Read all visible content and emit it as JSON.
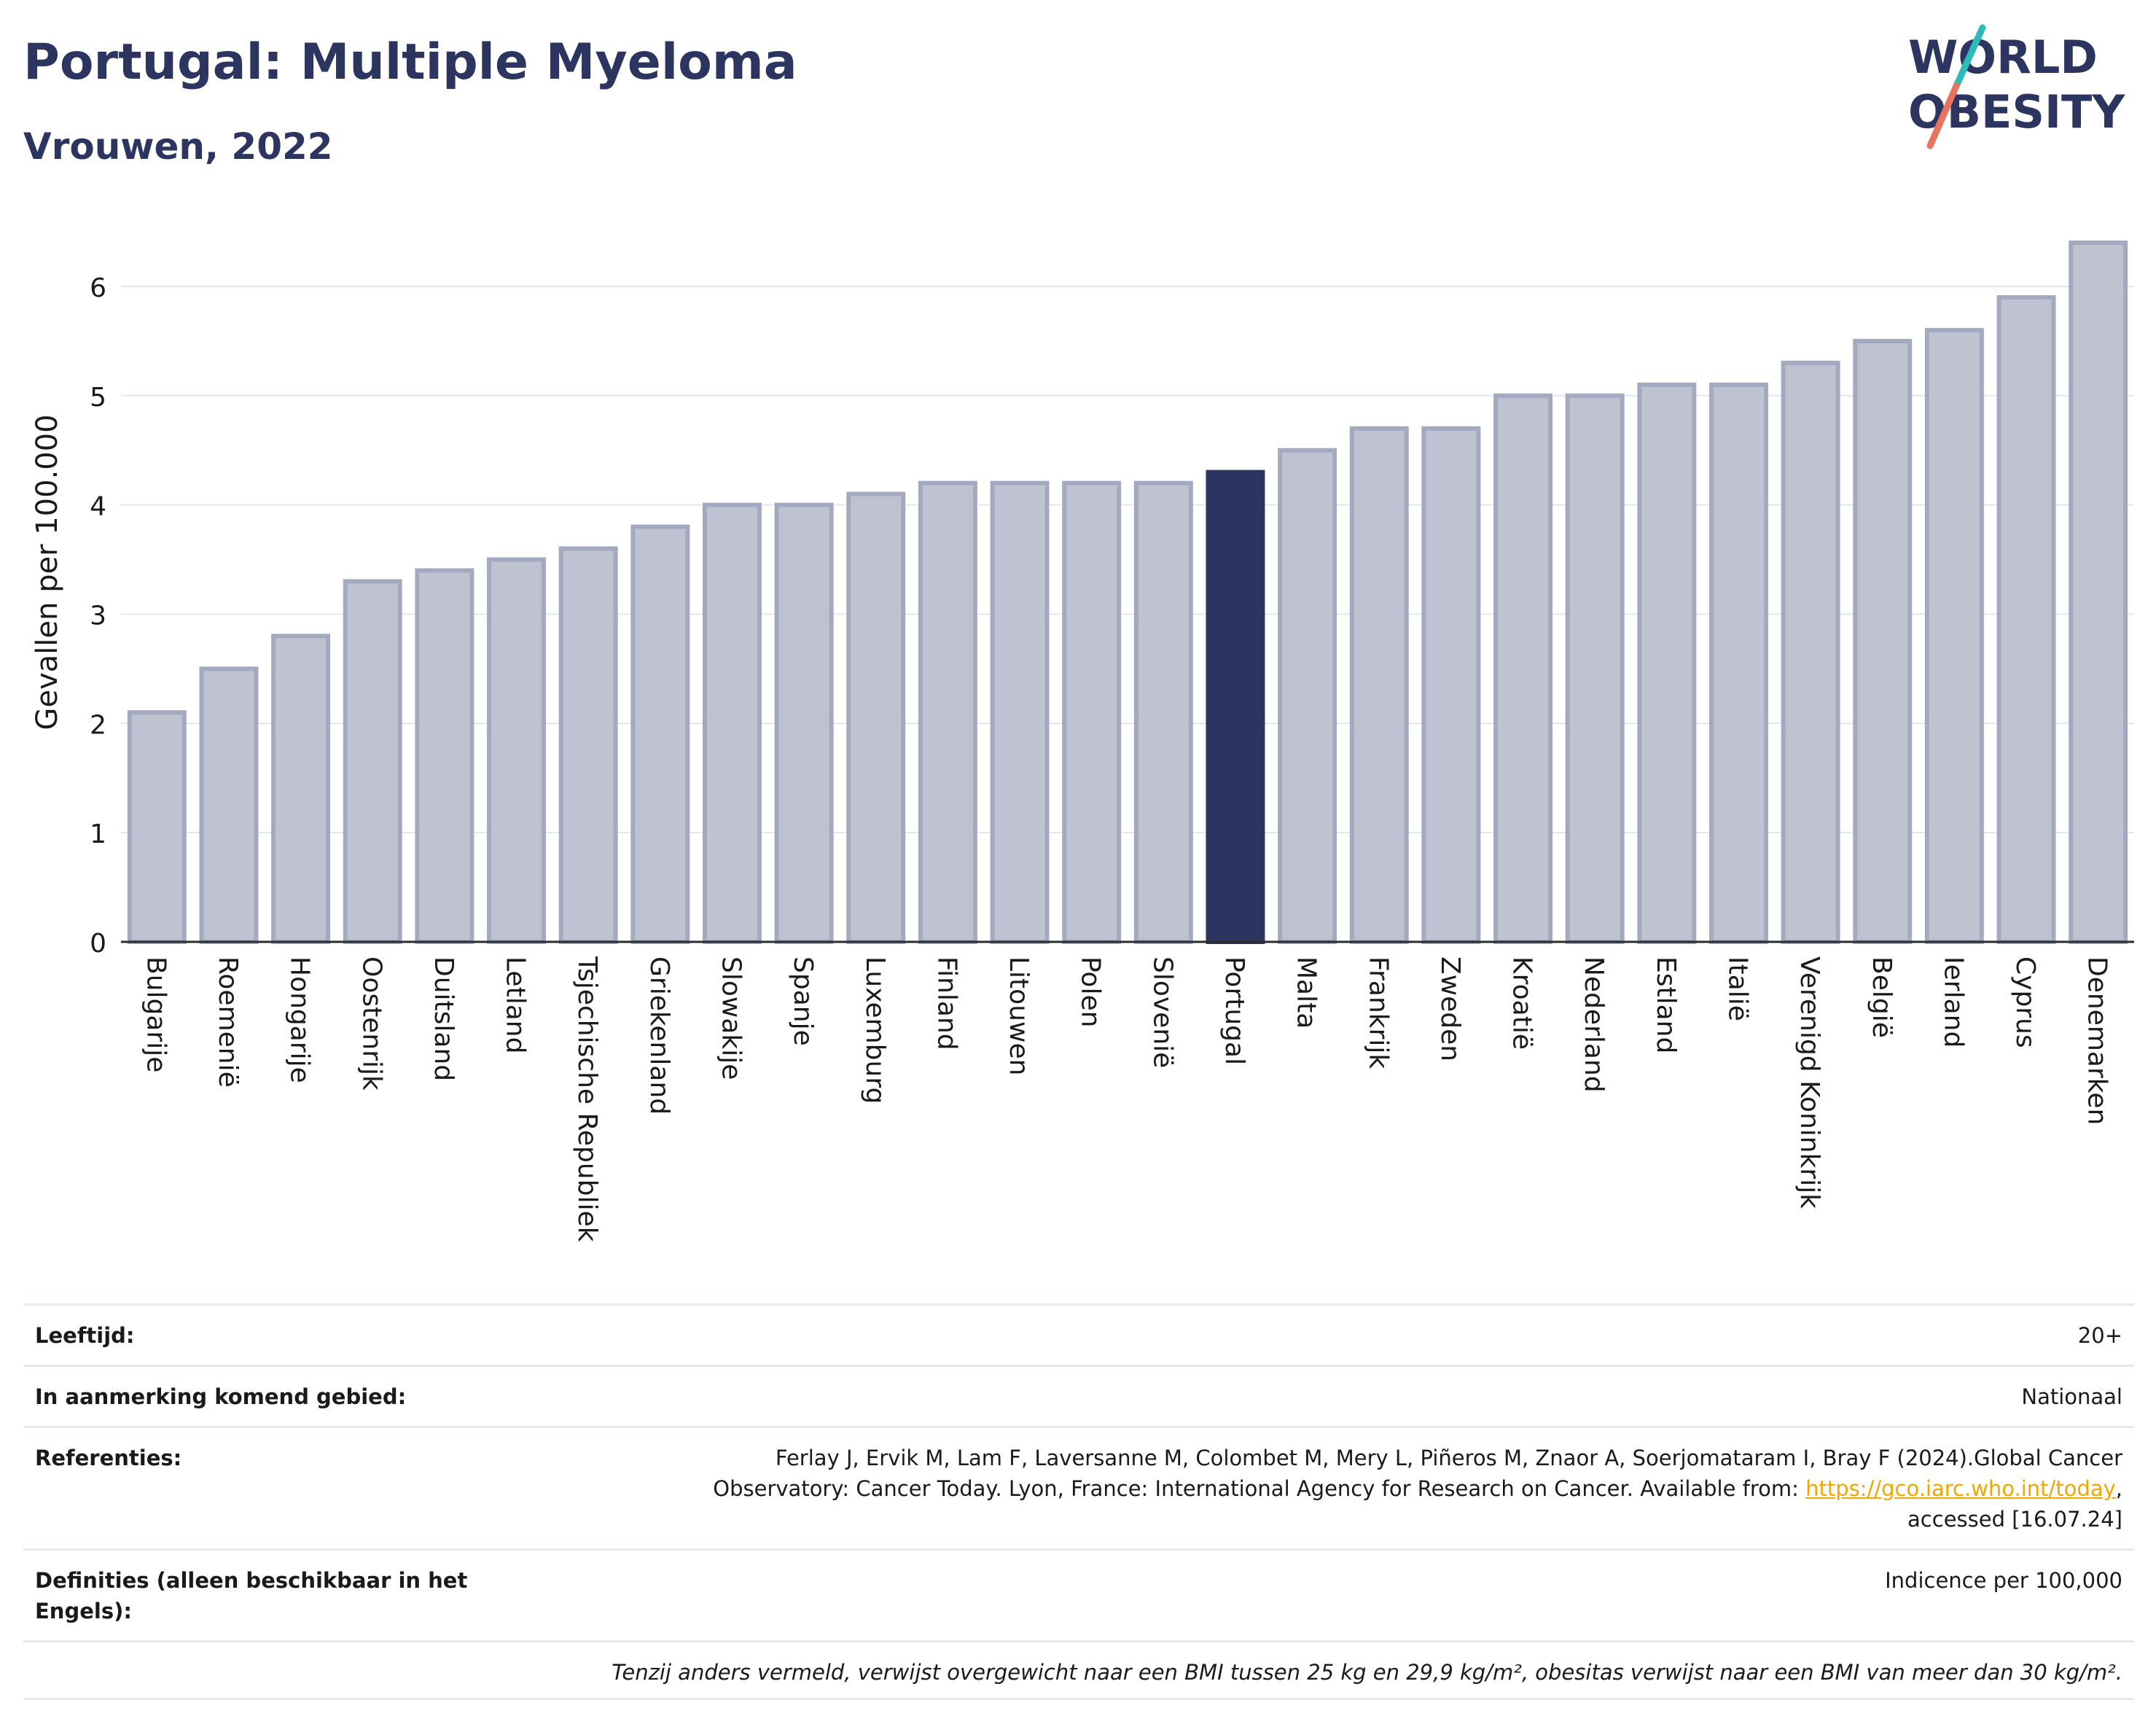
{
  "header": {
    "title": "Portugal: Multiple Myeloma",
    "subtitle": "Vrouwen, 2022",
    "logo_line1": "WORLD",
    "logo_line2": "OBESITY"
  },
  "colors": {
    "title": "#2b3560",
    "bar_default": "#bfc3d1",
    "bar_default_stroke": "#a3a9bf",
    "bar_highlight": "#2b3560",
    "link": "#f0a800",
    "logo_teal": "#2bbbb8",
    "logo_coral": "#e8735e"
  },
  "chart_data": {
    "type": "bar",
    "ylabel": "Gevallen per 100.000",
    "xlabel": "",
    "ylim": [
      0,
      6.5
    ],
    "yticks": [
      0,
      1,
      2,
      3,
      4,
      5,
      6
    ],
    "grid": true,
    "highlight": "Portugal",
    "categories": [
      "Bulgarije",
      "Roemenië",
      "Hongarije",
      "Oostenrijk",
      "Duitsland",
      "Letland",
      "Tsjechische Republiek",
      "Griekenland",
      "Slowakije",
      "Spanje",
      "Luxemburg",
      "Finland",
      "Litouwen",
      "Polen",
      "Slovenië",
      "Portugal",
      "Malta",
      "Frankrijk",
      "Zweden",
      "Kroatië",
      "Nederland",
      "Estland",
      "Italië",
      "Verenigd Koninkrijk",
      "België",
      "Ierland",
      "Cyprus",
      "Denemarken"
    ],
    "values": [
      2.1,
      2.5,
      2.8,
      3.3,
      3.4,
      3.5,
      3.6,
      3.8,
      4.0,
      4.0,
      4.1,
      4.2,
      4.2,
      4.2,
      4.2,
      4.3,
      4.5,
      4.7,
      4.7,
      5.0,
      5.0,
      5.1,
      5.1,
      5.3,
      5.5,
      5.6,
      5.9,
      6.4
    ]
  },
  "info": {
    "age_label": "Leeftijd:",
    "age_value": "20+",
    "area_label": "In aanmerking komend gebied:",
    "area_value": "Nationaal",
    "ref_label": "Referenties:",
    "ref_text_1": "Ferlay J, Ervik M, Lam F, Laversanne M, Colombet M, Mery L, Piñeros M, Znaor A, Soerjomataram I, Bray F (2024).Global Cancer",
    "ref_text_2": "Observatory: Cancer Today. Lyon, France: International Agency for Research on Cancer. Available from: ",
    "ref_link": "https://gco.iarc.who.int/today",
    "ref_text_3": ",",
    "ref_text_4": "accessed [16.07.24]",
    "def_label": "Definities (alleen beschikbaar in het Engels):",
    "def_value": "Indicence per 100,000",
    "footnote": "Tenzij anders vermeld, verwijst overgewicht naar een BMI tussen 25 kg en 29,9 kg/m², obesitas verwijst naar een BMI van meer dan 30 kg/m²."
  }
}
